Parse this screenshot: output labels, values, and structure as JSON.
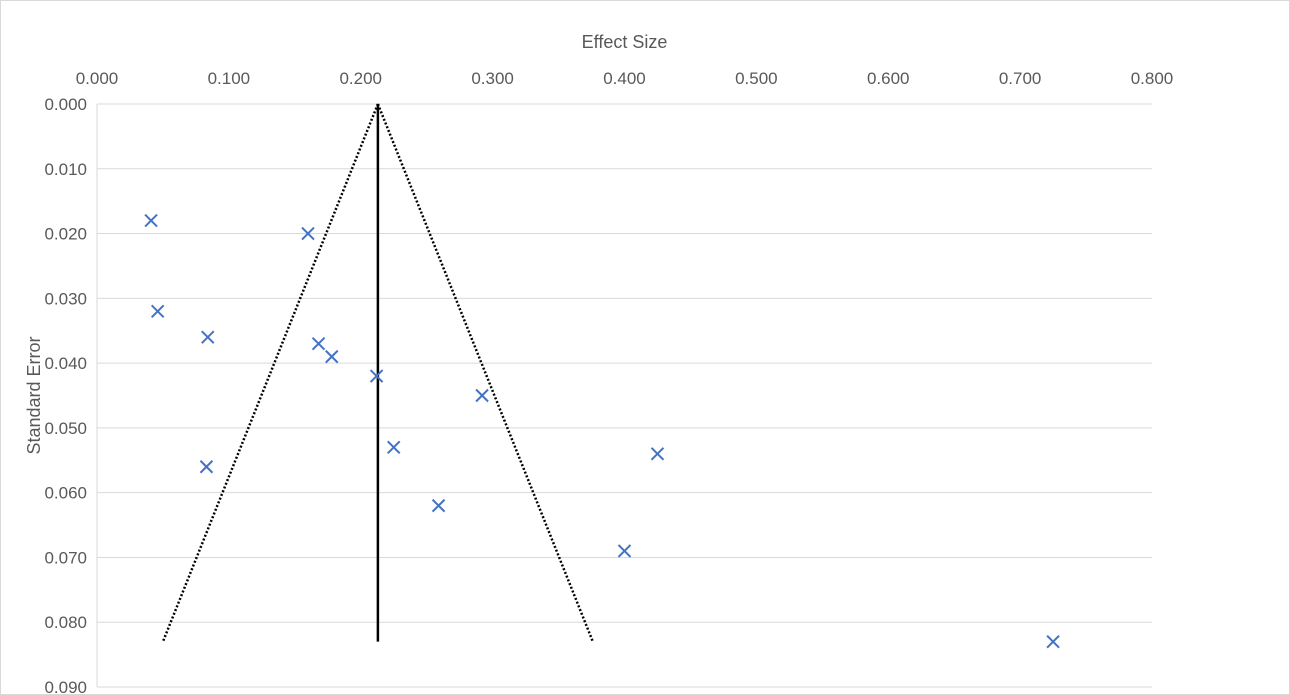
{
  "chart_data": {
    "type": "scatter",
    "title": "",
    "xlabel": "Effect Size",
    "ylabel": "Standard Error",
    "xlim": [
      0,
      0.8
    ],
    "ylim": [
      0,
      0.09
    ],
    "y_reversed": true,
    "x_axis_position": "top",
    "grid": "horizontal",
    "legend": "none",
    "x_ticks": [
      "0.000",
      "0.100",
      "0.200",
      "0.300",
      "0.400",
      "0.500",
      "0.600",
      "0.700",
      "0.800"
    ],
    "y_ticks": [
      "0.000",
      "0.010",
      "0.020",
      "0.030",
      "0.040",
      "0.050",
      "0.060",
      "0.070",
      "0.080",
      "0.090"
    ],
    "marker": "x",
    "marker_color": "#4472c4",
    "points": [
      {
        "x": 0.041,
        "y": 0.018
      },
      {
        "x": 0.16,
        "y": 0.02
      },
      {
        "x": 0.046,
        "y": 0.032
      },
      {
        "x": 0.084,
        "y": 0.036
      },
      {
        "x": 0.168,
        "y": 0.037
      },
      {
        "x": 0.178,
        "y": 0.039
      },
      {
        "x": 0.212,
        "y": 0.042
      },
      {
        "x": 0.292,
        "y": 0.045
      },
      {
        "x": 0.225,
        "y": 0.053
      },
      {
        "x": 0.425,
        "y": 0.054
      },
      {
        "x": 0.083,
        "y": 0.056
      },
      {
        "x": 0.259,
        "y": 0.062
      },
      {
        "x": 0.4,
        "y": 0.069
      },
      {
        "x": 0.725,
        "y": 0.083
      }
    ],
    "pooled_line": {
      "x": 0.213,
      "y_from": 0,
      "y_to": 0.083
    },
    "funnel": {
      "apex": [
        0.213,
        0
      ],
      "left": [
        0.05,
        0.083
      ],
      "right": [
        0.376,
        0.083
      ]
    }
  }
}
